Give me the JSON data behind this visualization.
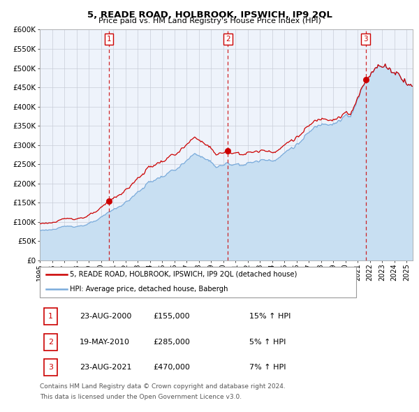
{
  "title": "5, READE ROAD, HOLBROOK, IPSWICH, IP9 2QL",
  "subtitle": "Price paid vs. HM Land Registry's House Price Index (HPI)",
  "legend_line1": "5, READE ROAD, HOLBROOK, IPSWICH, IP9 2QL (detached house)",
  "legend_line2": "HPI: Average price, detached house, Babergh",
  "sales": [
    {
      "num": "1",
      "date": "23-AUG-2000",
      "price": "£155,000",
      "hpi_diff": "15% ↑ HPI",
      "x_year": 2000.65,
      "price_val": 155000
    },
    {
      "num": "2",
      "date": "19-MAY-2010",
      "price": "£285,000",
      "hpi_diff": "5% ↑ HPI",
      "x_year": 2010.38,
      "price_val": 285000
    },
    {
      "num": "3",
      "date": "23-AUG-2021",
      "price": "£470,000",
      "hpi_diff": "7% ↑ HPI",
      "x_year": 2021.65,
      "price_val": 470000
    }
  ],
  "red_color": "#cc0000",
  "blue_color": "#7aabdb",
  "blue_fill_color": "#c8dff2",
  "background_color": "#eef3fb",
  "grid_color": "#c8cdd8",
  "dashed_color": "#cc0000",
  "ylim": [
    0,
    600000
  ],
  "yticks": [
    0,
    50000,
    100000,
    150000,
    200000,
    250000,
    300000,
    350000,
    400000,
    450000,
    500000,
    550000,
    600000
  ],
  "xmin": 1995.0,
  "xmax": 2025.5,
  "xtick_years": [
    1995,
    1996,
    1997,
    1998,
    1999,
    2000,
    2001,
    2002,
    2003,
    2004,
    2005,
    2006,
    2007,
    2008,
    2009,
    2010,
    2011,
    2012,
    2013,
    2014,
    2015,
    2016,
    2017,
    2018,
    2019,
    2020,
    2021,
    2022,
    2023,
    2024,
    2025
  ],
  "footnote_line1": "Contains HM Land Registry data © Crown copyright and database right 2024.",
  "footnote_line2": "This data is licensed under the Open Government Licence v3.0."
}
